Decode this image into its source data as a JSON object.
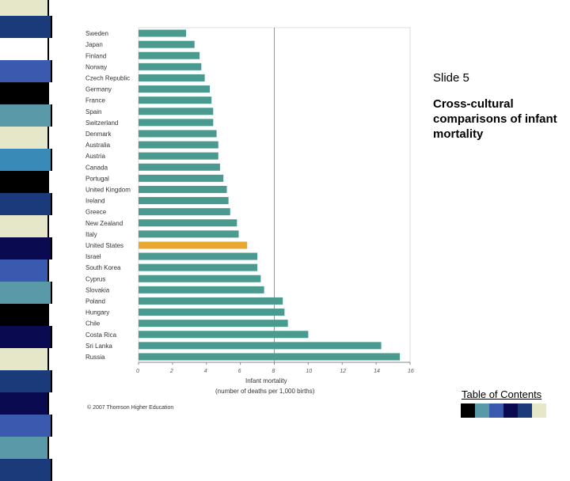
{
  "slide": {
    "number_label": "Slide 5",
    "subtitle": "Cross-cultural comparisons of infant mortality",
    "toc_link": "Table of Contents",
    "copyright": "© 2007 Thomson Higher Education"
  },
  "stripe_colors": [
    "#e6e6c8",
    "#1a3a7a",
    "#ffffff",
    "#3a5ab0",
    "#000000",
    "#5a9aa8",
    "#e6e6c8",
    "#3a8ab8",
    "#000000",
    "#1a3a7a",
    "#e6e6c8",
    "#0a0a50",
    "#3a5ab0",
    "#5a9aa8",
    "#000000",
    "#0a0a50",
    "#e6e6c8",
    "#1a3a7a",
    "#0a0a50",
    "#3a5ab0",
    "#5a9aa8",
    "#1a3a7a"
  ],
  "swatch_colors": [
    "#000000",
    "#5a9aa8",
    "#3a5ab0",
    "#0a0a50",
    "#1a3a7a",
    "#e6e6c8",
    "#ffffff"
  ],
  "colors": {
    "bar": "#4a9a90",
    "bar_highlight": "#e8a830",
    "axis": "#888888",
    "grid": "#999999"
  },
  "chart_data": {
    "type": "bar",
    "orientation": "horizontal",
    "categories": [
      "Sweden",
      "Japan",
      "Finland",
      "Norway",
      "Czech Republic",
      "Germany",
      "France",
      "Spain",
      "Switzerland",
      "Denmark",
      "Australia",
      "Austria",
      "Canada",
      "Portugal",
      "United Kingdom",
      "Ireland",
      "Greece",
      "New Zealand",
      "Italy",
      "United States",
      "Israel",
      "South Korea",
      "Cyprus",
      "Slovakia",
      "Poland",
      "Hungary",
      "Chile",
      "Costa Rica",
      "Sri Lanka",
      "Russia"
    ],
    "values": [
      2.8,
      3.3,
      3.6,
      3.7,
      3.9,
      4.2,
      4.3,
      4.4,
      4.4,
      4.6,
      4.7,
      4.7,
      4.8,
      5.0,
      5.2,
      5.3,
      5.4,
      5.8,
      5.9,
      6.4,
      7.0,
      7.0,
      7.2,
      7.4,
      8.5,
      8.6,
      8.8,
      10.0,
      14.3,
      15.4
    ],
    "highlight": "United States",
    "xlim": [
      0,
      16
    ],
    "xticks": [
      "0",
      "2",
      "4",
      "6",
      "8",
      "10",
      "12",
      "14",
      "16"
    ],
    "xlabel_line1": "Infant mortality",
    "xlabel_line2": "(number of deaths per 1,000 births)",
    "title": "",
    "grid": "vertical"
  }
}
